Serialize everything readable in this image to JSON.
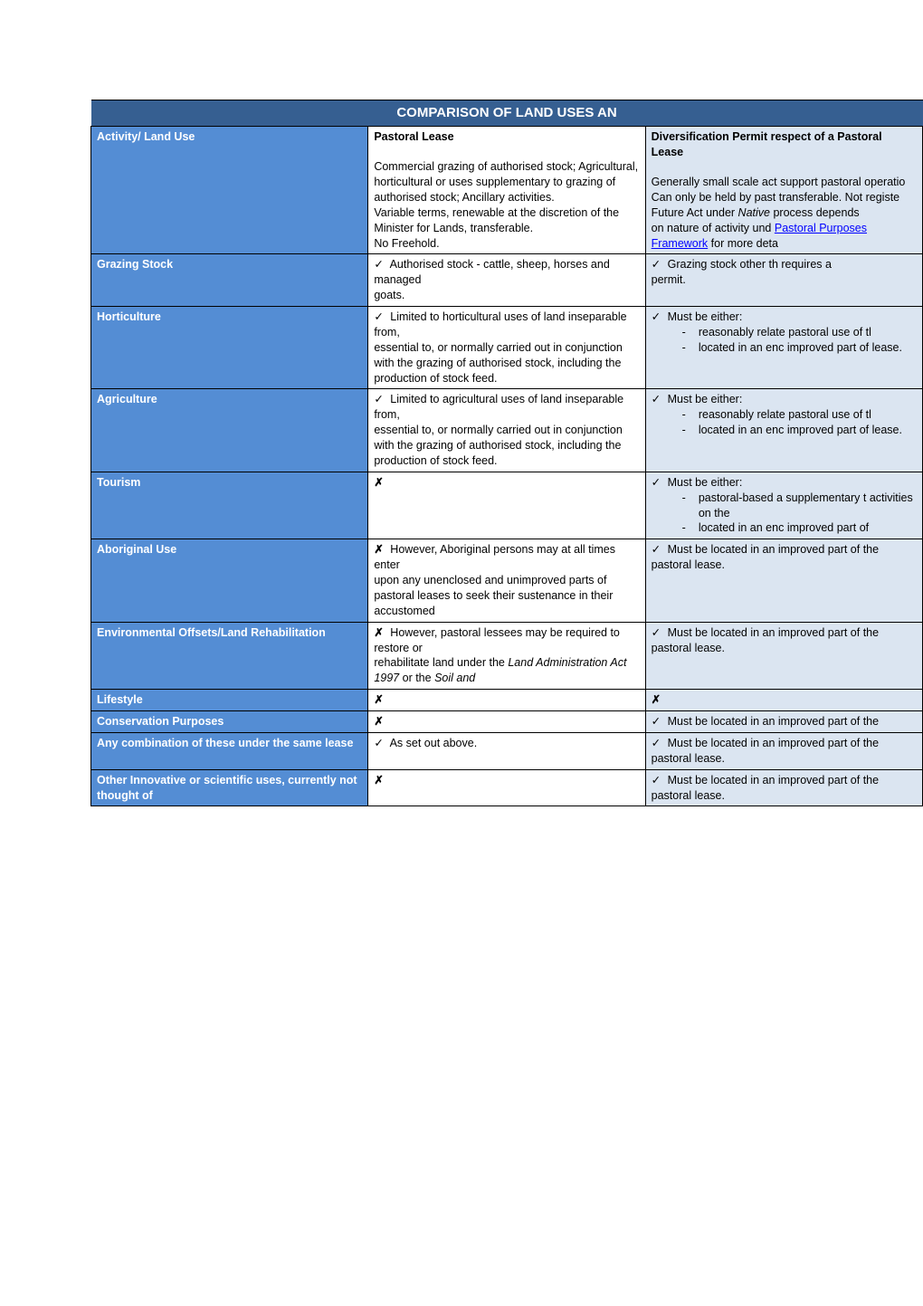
{
  "title": "COMPARISON OF LAND USES AN",
  "colors": {
    "title_bg": "#365f91",
    "label_bg": "#548dd4",
    "div_bg": "#dbe5f1",
    "pastoral_bg": "#ffffff",
    "link_color": "#0000ff",
    "text_white": "#ffffff",
    "text_black": "#000000",
    "border": "#000000"
  },
  "columns": {
    "activity": "Activity/ Land Use",
    "pastoral_title": "Pastoral Lease",
    "pastoral_desc": "Commercial grazing of authorised stock; Agricultural, horticultural or uses supplementary to grazing of authorised stock; Ancillary activities.\nVariable terms, renewable at the discretion of the Minister for Lands, transferable.\nNo Freehold.",
    "diversification_title": "Diversification Permit respect of a Pastoral Lease",
    "diversification_desc_pre": "Generally small scale act support pastoral operatio Can only be held by past transferable.  Not registe Future Act under ",
    "diversification_native": "Native",
    "diversification_desc_mid": " process depends\non nature of activity und ",
    "diversification_link1": "Pastoral Purposes",
    "diversification_link2": "Framework",
    "diversification_desc_post": " for more deta"
  },
  "rows": [
    {
      "label": "Grazing Stock",
      "pastoral": "Authorised stock - cattle, sheep, horses and managed\ngoats.",
      "pastoral_check": true,
      "div": "Grazing stock other th requires a\npermit.",
      "div_check": true,
      "bullets": []
    },
    {
      "label": "Horticulture",
      "pastoral": "Limited to horticultural uses of land inseparable from,\nessential to, or normally carried out in conjunction with the grazing of authorised stock, including the production of stock feed.",
      "pastoral_check": true,
      "div": "Must be either:",
      "div_check": true,
      "bullets": [
        "reasonably relate pastoral use of tl",
        "located in an enc improved part of lease."
      ]
    },
    {
      "label": "Agriculture",
      "pastoral": "Limited to agricultural uses of land inseparable from,\nessential to, or normally carried out in conjunction with the grazing of authorised stock, including the production of stock feed.",
      "pastoral_check": true,
      "div": "Must be either:",
      "div_check": true,
      "bullets": [
        "reasonably relate pastoral use of tl",
        "located in an enc improved part of lease."
      ]
    },
    {
      "label": "Tourism",
      "pastoral": "",
      "pastoral_cross": true,
      "div": "Must be either:",
      "div_check": true,
      "bullets": [
        "pastoral-based a supplementary t activities on the",
        "located in an enc improved part of"
      ]
    },
    {
      "label": "Aboriginal Use",
      "pastoral": "However, Aboriginal persons may at all times enter\nupon any unenclosed and unimproved parts of pastoral leases to seek their sustenance in their accustomed",
      "pastoral_cross": true,
      "div": "Must be located in an improved part of the pastoral lease.",
      "div_check": true,
      "bullets": []
    },
    {
      "label": "Environmental Offsets/Land Rehabilitation",
      "pastoral_pre": "However, pastoral lessees may be required to restore or\nrehabilitate land under the ",
      "pastoral_italic1": "Land Administration Act 1997",
      "pastoral_mid": " or the ",
      "pastoral_italic2": "Soil and",
      "pastoral_cross": true,
      "pastoral_complex": true,
      "div": "Must be located in an improved part of the pastoral lease.",
      "div_check": true,
      "bullets": []
    },
    {
      "label": "Lifestyle",
      "pastoral": "",
      "pastoral_cross": true,
      "div": "",
      "div_cross": true,
      "bullets": []
    },
    {
      "label": "Conservation Purposes",
      "pastoral": "",
      "pastoral_cross": true,
      "div": "Must be located in an improved part of the",
      "div_check": true,
      "bullets": []
    },
    {
      "label": "Any combination of these under the same lease",
      "pastoral": "As set out above.",
      "pastoral_check": true,
      "div": "Must be located in an improved part of the pastoral lease.",
      "div_check": true,
      "bullets": []
    },
    {
      "label": "Other Innovative or scientific uses, currently not thought of",
      "pastoral": "",
      "pastoral_cross": true,
      "div": "Must be located in an improved part of the pastoral lease.",
      "div_check": true,
      "bullets": []
    }
  ]
}
